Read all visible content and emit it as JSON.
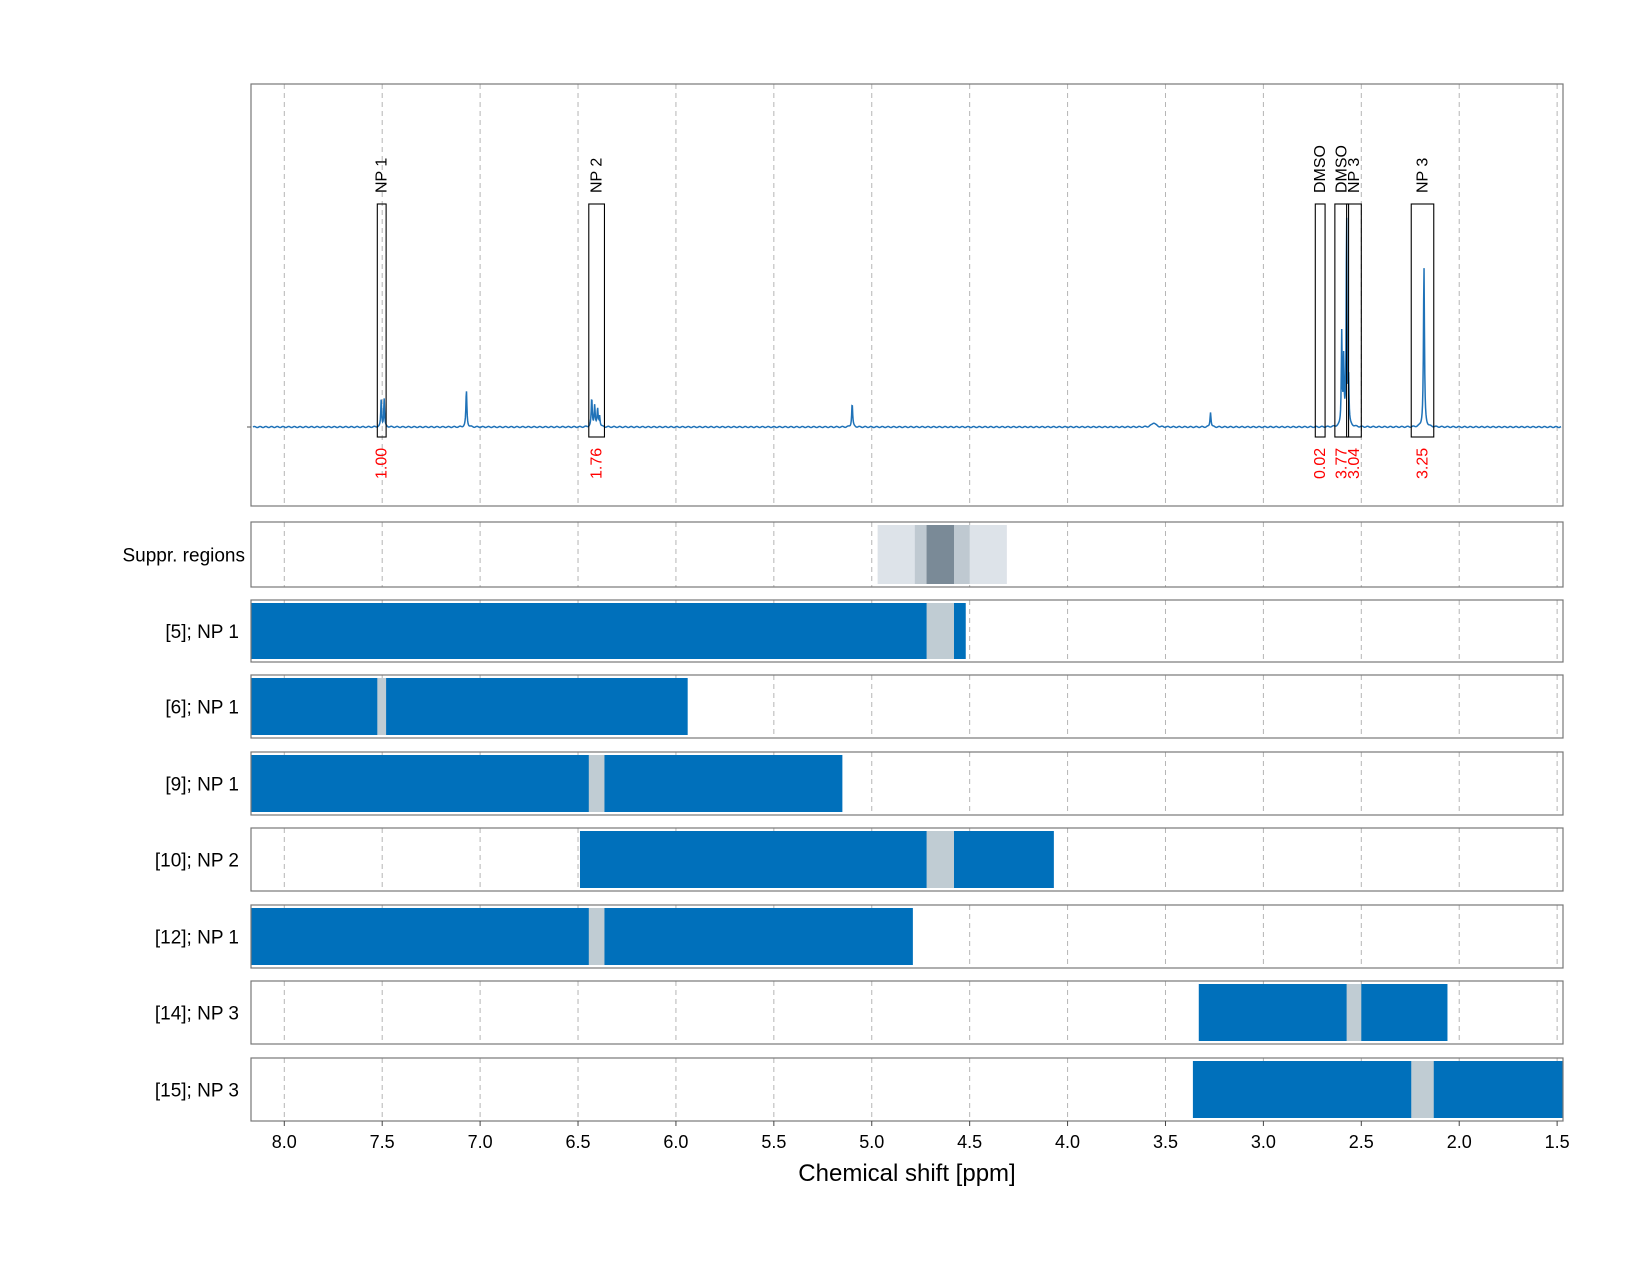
{
  "chart_data": {
    "type": "line",
    "x_range": [
      8.17,
      1.47
    ],
    "xlabel": "Chemical shift [ppm]",
    "x_ticks": [
      8.0,
      7.5,
      7.0,
      6.5,
      6.0,
      5.5,
      5.0,
      4.5,
      4.0,
      3.5,
      3.0,
      2.5,
      2.0,
      1.5
    ],
    "x_tick_labels": [
      "8.0",
      "7.5",
      "7.0",
      "6.5",
      "6.0",
      "5.5",
      "5.0",
      "4.5",
      "4.0",
      "3.5",
      "3.0",
      "2.5",
      "2.0",
      "1.5"
    ],
    "colors": {
      "spectrum": "#1f72b8",
      "bar": "#0070bb",
      "signal_gap": "#c0ccd3",
      "suppr_light": "#dde3e9",
      "suppr_mid": "#bfc9d1",
      "suppr_dark": "#7a8a97",
      "integral_text": "#ff0000",
      "grid": "#b5b5b5"
    },
    "spectrum": {
      "peaks": [
        {
          "ppm": 7.505,
          "height": 0.13,
          "width": 0.0025
        },
        {
          "ppm": 7.49,
          "height": 0.13,
          "width": 0.0025
        },
        {
          "ppm": 7.07,
          "height": 0.17,
          "width": 0.003
        },
        {
          "ppm": 6.43,
          "height": 0.13,
          "width": 0.003
        },
        {
          "ppm": 6.415,
          "height": 0.1,
          "width": 0.003
        },
        {
          "ppm": 6.4,
          "height": 0.08,
          "width": 0.003
        },
        {
          "ppm": 6.39,
          "height": 0.05,
          "width": 0.003
        },
        {
          "ppm": 5.1,
          "height": 0.11,
          "width": 0.003
        },
        {
          "ppm": 3.56,
          "height": 0.02,
          "width": 0.012
        },
        {
          "ppm": 3.27,
          "height": 0.07,
          "width": 0.003
        },
        {
          "ppm": 2.6,
          "height": 0.43,
          "width": 0.0025
        },
        {
          "ppm": 2.59,
          "height": 0.3,
          "width": 0.0025
        },
        {
          "ppm": 2.575,
          "height": 0.99,
          "width": 0.0025
        },
        {
          "ppm": 2.565,
          "height": 0.2,
          "width": 0.0025
        },
        {
          "ppm": 2.18,
          "height": 0.75,
          "width": 0.003
        }
      ]
    },
    "signal_regions": [
      {
        "label": "NP 1",
        "integral": "1.00",
        "from": 7.525,
        "to": 7.48
      },
      {
        "label": "NP 2",
        "integral": "1.76",
        "from": 6.445,
        "to": 6.365
      },
      {
        "label": "DMSO",
        "integral": "0.02",
        "from": 2.735,
        "to": 2.685
      },
      {
        "label": "DMSO",
        "integral": "3.77",
        "from": 2.635,
        "to": 2.565
      },
      {
        "label": "NP 3",
        "integral": "3.04",
        "from": 2.575,
        "to": 2.5
      },
      {
        "label": "NP 3",
        "integral": "3.25",
        "from": 2.245,
        "to": 2.13
      }
    ],
    "suppression": {
      "label": "Suppr. regions",
      "bands": [
        {
          "from": 4.97,
          "to": 4.31,
          "shade": "light"
        },
        {
          "from": 4.78,
          "to": 4.5,
          "shade": "mid"
        },
        {
          "from": 4.72,
          "to": 4.58,
          "shade": "dark"
        }
      ]
    },
    "rows": [
      {
        "label": "[5]; NP 1",
        "from": 8.17,
        "to": 4.52,
        "gap_from": 4.72,
        "gap_to": 4.58
      },
      {
        "label": "[6]; NP 1",
        "from": 8.17,
        "to": 5.94,
        "gap_from": 7.525,
        "gap_to": 7.48
      },
      {
        "label": "[9]; NP 1",
        "from": 8.17,
        "to": 5.15,
        "gap_from": 6.445,
        "gap_to": 6.365
      },
      {
        "label": "[10]; NP 2",
        "from": 6.49,
        "to": 4.07,
        "gap_from": 4.72,
        "gap_to": 4.58
      },
      {
        "label": "[12]; NP 1",
        "from": 8.17,
        "to": 4.79,
        "gap_from": 6.445,
        "gap_to": 6.365
      },
      {
        "label": "[14]; NP 3",
        "from": 3.33,
        "to": 2.06,
        "gap_from": 2.575,
        "gap_to": 2.5
      },
      {
        "label": "[15]; NP 3",
        "from": 3.36,
        "to": 1.47,
        "gap_from": 2.245,
        "gap_to": 2.13
      }
    ]
  }
}
